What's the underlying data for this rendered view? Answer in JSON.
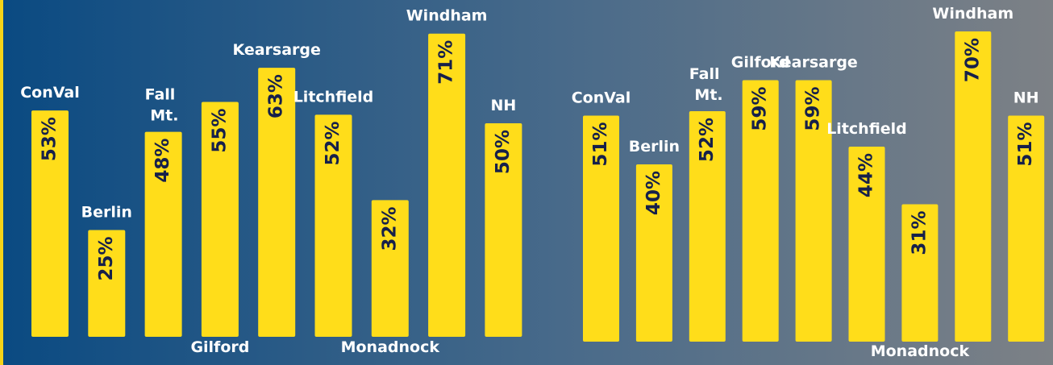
{
  "chart_data": [
    {
      "type": "bar",
      "color": "#ffdd1a",
      "categories": [
        "ConVal",
        "Berlin",
        "Fall Mt.",
        "Gilford",
        "Kearsarge",
        "Litchfield",
        "Monadnock",
        "Windham",
        "NH"
      ],
      "values": [
        53,
        25,
        48,
        55,
        63,
        52,
        32,
        71,
        50
      ],
      "value_labels": [
        "53%",
        "25%",
        "48%",
        "55%",
        "63%",
        "52%",
        "32%",
        "71%",
        "50%"
      ]
    },
    {
      "type": "bar",
      "color": "#ffdd1a",
      "categories": [
        "ConVal",
        "Berlin",
        "Fall Mt.",
        "Gilford",
        "Kearsarge",
        "Litchfield",
        "Monadnock",
        "Windham",
        "NH"
      ],
      "values": [
        51,
        40,
        52,
        59,
        59,
        44,
        31,
        70,
        51
      ],
      "value_labels": [
        "51%",
        "40%",
        "52%",
        "59%",
        "59%",
        "44%",
        "31%",
        "70%",
        "51%"
      ]
    }
  ]
}
